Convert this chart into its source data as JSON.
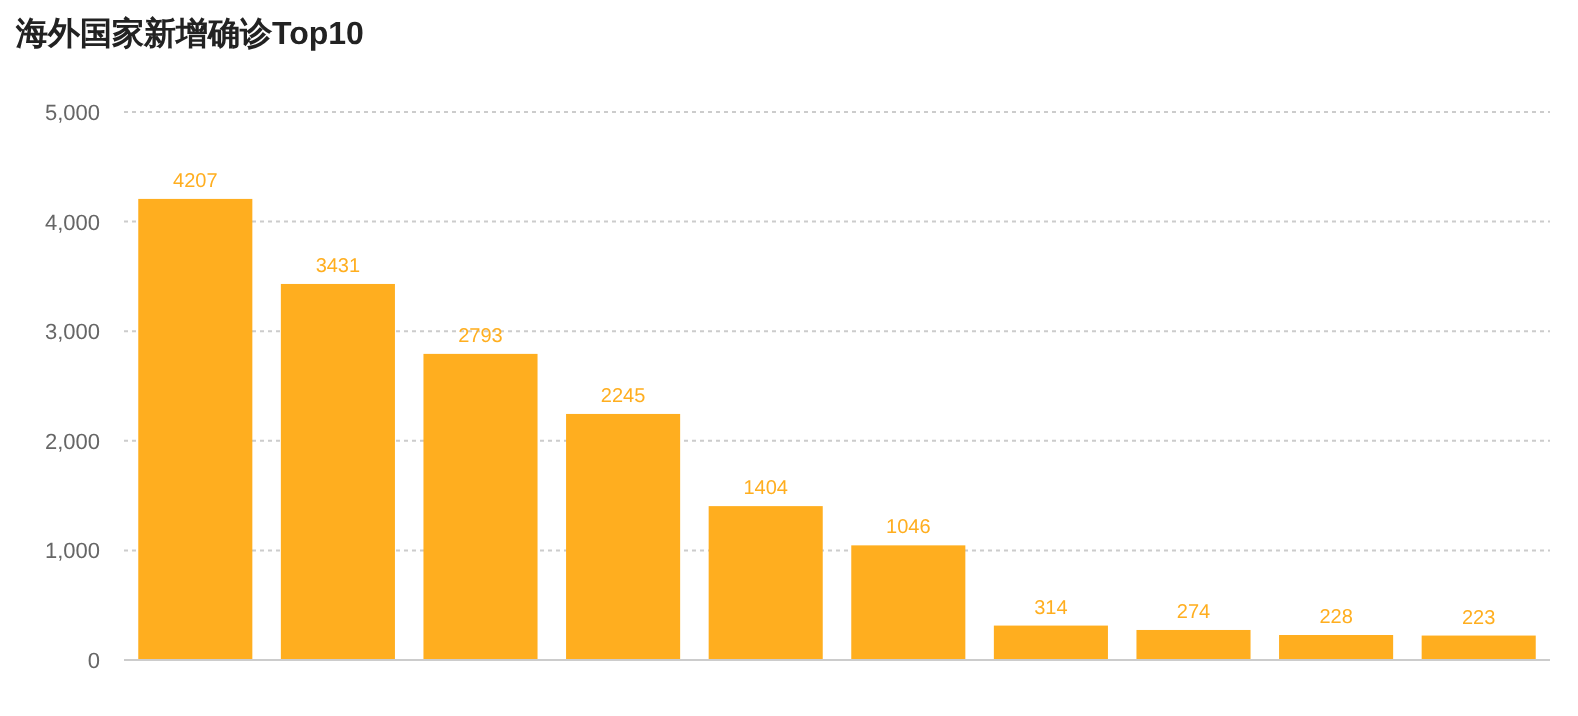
{
  "chart_data": {
    "type": "bar",
    "title": "海外国家新增确诊Top10",
    "categories": [
      null,
      null,
      null,
      null,
      null,
      null,
      null,
      null,
      null,
      null
    ],
    "values": [
      4207,
      3431,
      2793,
      2245,
      1404,
      1046,
      314,
      274,
      228,
      223
    ],
    "color": "#ffae1f",
    "data_labels": true,
    "grid": "y",
    "ylim": [
      0,
      5000
    ],
    "yticks": [
      {
        "value": 0,
        "label": "0"
      },
      {
        "value": 1000,
        "label": "1,000"
      },
      {
        "value": 2000,
        "label": "2,000"
      },
      {
        "value": 3000,
        "label": "3,000"
      },
      {
        "value": 4000,
        "label": "4,000"
      },
      {
        "value": 5000,
        "label": "5,000"
      }
    ]
  }
}
